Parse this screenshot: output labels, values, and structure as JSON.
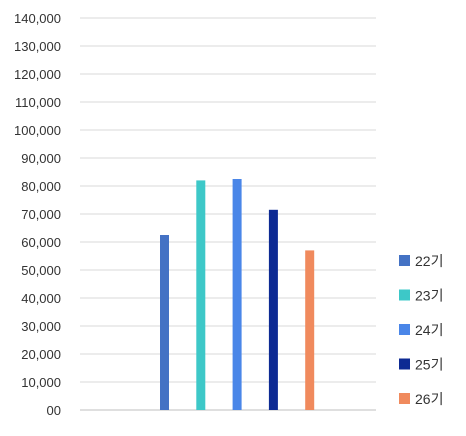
{
  "chart_data": {
    "type": "bar",
    "categories": [
      ""
    ],
    "series": [
      {
        "name": "22기",
        "values": [
          62500
        ],
        "color": "#4472C4"
      },
      {
        "name": "23기",
        "values": [
          82000
        ],
        "color": "#3DC8C8"
      },
      {
        "name": "24기",
        "values": [
          82500
        ],
        "color": "#4A86E8"
      },
      {
        "name": "25기",
        "values": [
          71500
        ],
        "color": "#0D2A93"
      },
      {
        "name": "26기",
        "values": [
          57000
        ],
        "color": "#F08A5D"
      }
    ],
    "title": "",
    "xlabel": "",
    "ylabel": "",
    "ylim": [
      0,
      140000
    ],
    "yticks": [
      "00",
      "10,000",
      "20,000",
      "30,000",
      "40,000",
      "50,000",
      "60,000",
      "70,000",
      "80,000",
      "90,000",
      "100,000",
      "110,000",
      "120,000",
      "130,000",
      "140,000"
    ],
    "ytick_values": [
      0,
      10000,
      20000,
      30000,
      40000,
      50000,
      60000,
      70000,
      80000,
      90000,
      100000,
      110000,
      120000,
      130000,
      140000
    ],
    "grid": true,
    "legend_position": "right"
  }
}
